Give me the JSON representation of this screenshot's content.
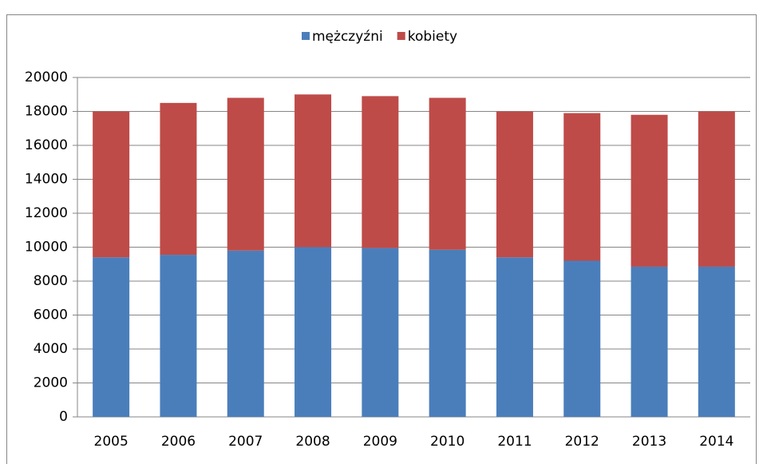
{
  "chart_data": {
    "type": "stacked_bar",
    "categories": [
      "2005",
      "2006",
      "2007",
      "2008",
      "2009",
      "2010",
      "2011",
      "2012",
      "2013",
      "2014"
    ],
    "series": [
      {
        "name": "mężczyźni",
        "color": "#4a7ebb",
        "values": [
          9400,
          9550,
          9800,
          10000,
          9950,
          9850,
          9400,
          9200,
          8850,
          8850
        ]
      },
      {
        "name": "kobiety",
        "color": "#be4b48",
        "values": [
          8600,
          8950,
          9000,
          9000,
          8950,
          8950,
          8600,
          8700,
          8950,
          9150
        ]
      }
    ],
    "ylim": [
      0,
      20000
    ],
    "yticks": [
      0,
      2000,
      4000,
      6000,
      8000,
      10000,
      12000,
      14000,
      16000,
      18000,
      20000
    ],
    "grid": true,
    "legend": "top"
  }
}
